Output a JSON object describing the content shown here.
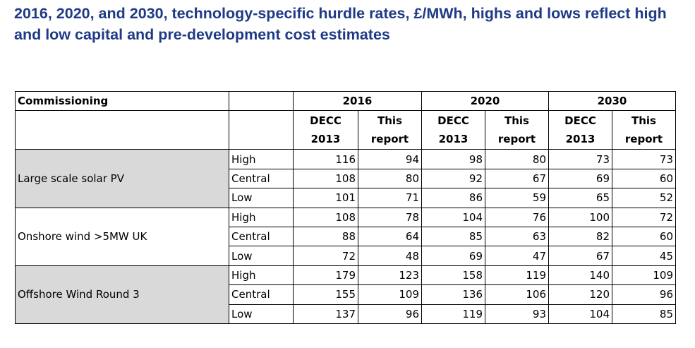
{
  "title": "2016, 2020, and 2030, technology-specific hurdle rates, £/MWh, highs and lows reflect high and low capital and pre-development cost estimates",
  "table": {
    "corner_label": "Commissioning",
    "years": [
      "2016",
      "2020",
      "2030"
    ],
    "sub_headers": [
      {
        "line1": "DECC",
        "line2": "2013"
      },
      {
        "line1": "This",
        "line2": "report"
      }
    ],
    "groups": [
      {
        "name": "Large scale solar PV",
        "shaded": true,
        "rows": [
          {
            "level": "High",
            "values": [
              "116",
              "94",
              "98",
              "80",
              "73",
              "73"
            ]
          },
          {
            "level": "Central",
            "values": [
              "108",
              "80",
              "92",
              "67",
              "69",
              "60"
            ]
          },
          {
            "level": "Low",
            "values": [
              "101",
              "71",
              "86",
              "59",
              "65",
              "52"
            ]
          }
        ]
      },
      {
        "name": "Onshore wind >5MW UK",
        "shaded": false,
        "rows": [
          {
            "level": "High",
            "values": [
              "108",
              "78",
              "104",
              "76",
              "100",
              "72"
            ]
          },
          {
            "level": "Central",
            "values": [
              "88",
              "64",
              "85",
              "63",
              "82",
              "60"
            ]
          },
          {
            "level": "Low",
            "values": [
              "72",
              "48",
              "69",
              "47",
              "67",
              "45"
            ]
          }
        ]
      },
      {
        "name": "Offshore Wind Round 3",
        "shaded": true,
        "rows": [
          {
            "level": "High",
            "values": [
              "179",
              "123",
              "158",
              "119",
              "140",
              "109"
            ]
          },
          {
            "level": "Central",
            "values": [
              "155",
              "109",
              "136",
              "106",
              "120",
              "96"
            ]
          },
          {
            "level": "Low",
            "values": [
              "137",
              "96",
              "119",
              "93",
              "104",
              "85"
            ]
          }
        ]
      }
    ]
  }
}
